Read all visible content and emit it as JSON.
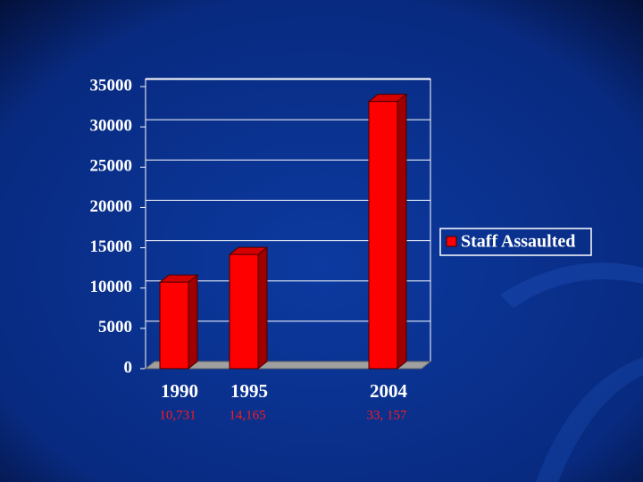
{
  "chart_data": {
    "type": "bar",
    "categories": [
      "1990",
      "1995",
      null,
      "2004"
    ],
    "series": [
      {
        "name": "Staff Assaulted",
        "color": "#ff0000",
        "values": [
          10731,
          14165,
          null,
          33157
        ],
        "value_labels": [
          "10,731",
          "14,165",
          null,
          "33, 157"
        ]
      }
    ],
    "ylim": [
      0,
      35000
    ],
    "yticks": [
      0,
      5000,
      10000,
      15000,
      20000,
      25000,
      30000,
      35000
    ],
    "grid": true,
    "legend": "right"
  }
}
